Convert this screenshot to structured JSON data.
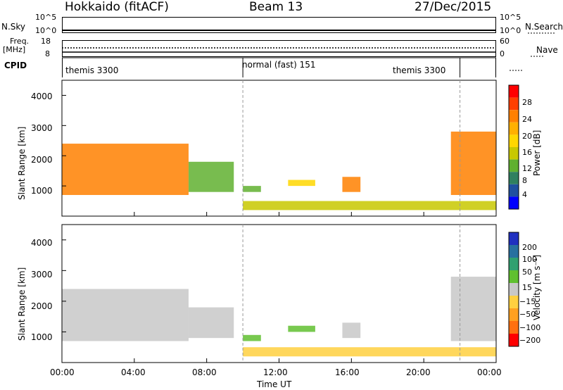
{
  "header": {
    "station": "Hokkaido (fitACF)",
    "beam": "Beam 13",
    "date": "27/Dec/2015"
  },
  "panels": {
    "nsky": {
      "label": "N.Sky",
      "ticks_left": [
        "10^5",
        "10^0"
      ],
      "ticks_right": [
        "10^5",
        "10^0"
      ],
      "right_label": "N.Search"
    },
    "freq": {
      "label_top": "Freq.",
      "label_bot": "[MHz]",
      "ticks_left": [
        "18",
        "8"
      ],
      "ticks_right": [
        "60",
        "0"
      ],
      "right_label": "Nave"
    },
    "cpid": {
      "label": "CPID",
      "segments": [
        "themis 3300",
        "normal (fast) 151",
        "themis 3300"
      ]
    }
  },
  "axes": {
    "ylabel": "Slant Range [km]",
    "xlabel": "Time UT",
    "yticks": [
      "1000",
      "2000",
      "3000",
      "4000"
    ],
    "xticks": [
      "00:00",
      "04:00",
      "08:00",
      "12:00",
      "16:00",
      "20:00",
      "00:00"
    ]
  },
  "colorbars": {
    "power": {
      "label": "Power [dB]",
      "ticks": [
        "28",
        "24",
        "20",
        "16",
        "12",
        "8",
        "4"
      ],
      "colors": [
        "#ff0000",
        "#ff4000",
        "#ff8000",
        "#ffb000",
        "#ffd700",
        "#c8c800",
        "#60b030",
        "#308060",
        "#2050a0",
        "#0000ff"
      ]
    },
    "velocity": {
      "label": "Velocity [m s⁻¹]",
      "ticks": [
        "200",
        "100",
        "50",
        "15",
        "−15",
        "−50",
        "−100",
        "−200"
      ],
      "colors": [
        "#2030c0",
        "#2870a0",
        "#30a070",
        "#60c030",
        "#c8c8c8",
        "#ffd040",
        "#ffa020",
        "#ff7010",
        "#ff0000"
      ]
    }
  },
  "chart_data": [
    {
      "type": "heatmap",
      "title": "Power",
      "xlabel": "Time UT",
      "ylabel": "Slant Range [km]",
      "xlim": [
        "00:00",
        "24:00"
      ],
      "ylim": [
        0,
        4500
      ],
      "colorbar": {
        "label": "Power [dB]",
        "range": [
          0,
          30
        ]
      },
      "regions": [
        {
          "t": [
            0.0,
            7.0
          ],
          "range_km": [
            700,
            2400
          ],
          "value_db": 24
        },
        {
          "t": [
            7.0,
            9.5
          ],
          "range_km": [
            800,
            1800
          ],
          "value_db": 10
        },
        {
          "t": [
            10.0,
            11.0
          ],
          "range_km": [
            800,
            1000
          ],
          "value_db": 12
        },
        {
          "t": [
            12.5,
            14.0
          ],
          "range_km": [
            1000,
            1200
          ],
          "value_db": 18
        },
        {
          "t": [
            15.5,
            16.5
          ],
          "range_km": [
            800,
            1300
          ],
          "value_db": 22
        },
        {
          "t": [
            10.0,
            24.0
          ],
          "range_km": [
            200,
            500
          ],
          "value_db": 14
        },
        {
          "t": [
            21.5,
            24.0
          ],
          "range_km": [
            700,
            2800
          ],
          "value_db": 24
        }
      ]
    },
    {
      "type": "heatmap",
      "title": "Velocity",
      "xlabel": "Time UT",
      "ylabel": "Slant Range [km]",
      "xlim": [
        "00:00",
        "24:00"
      ],
      "ylim": [
        0,
        4500
      ],
      "colorbar": {
        "label": "Velocity [m s⁻¹]",
        "range": [
          -200,
          200
        ]
      },
      "regions": [
        {
          "t": [
            0.0,
            7.0
          ],
          "range_km": [
            700,
            2400
          ],
          "value_ms": 0
        },
        {
          "t": [
            7.0,
            9.5
          ],
          "range_km": [
            800,
            1800
          ],
          "value_ms": 0
        },
        {
          "t": [
            10.0,
            11.0
          ],
          "range_km": [
            700,
            900
          ],
          "value_ms": 30
        },
        {
          "t": [
            12.5,
            14.0
          ],
          "range_km": [
            1000,
            1200
          ],
          "value_ms": 30
        },
        {
          "t": [
            15.5,
            16.5
          ],
          "range_km": [
            800,
            1300
          ],
          "value_ms": 0
        },
        {
          "t": [
            10.0,
            24.0
          ],
          "range_km": [
            200,
            500
          ],
          "value_ms": -30
        },
        {
          "t": [
            21.5,
            24.0
          ],
          "range_km": [
            700,
            2800
          ],
          "value_ms": 0
        }
      ]
    }
  ]
}
